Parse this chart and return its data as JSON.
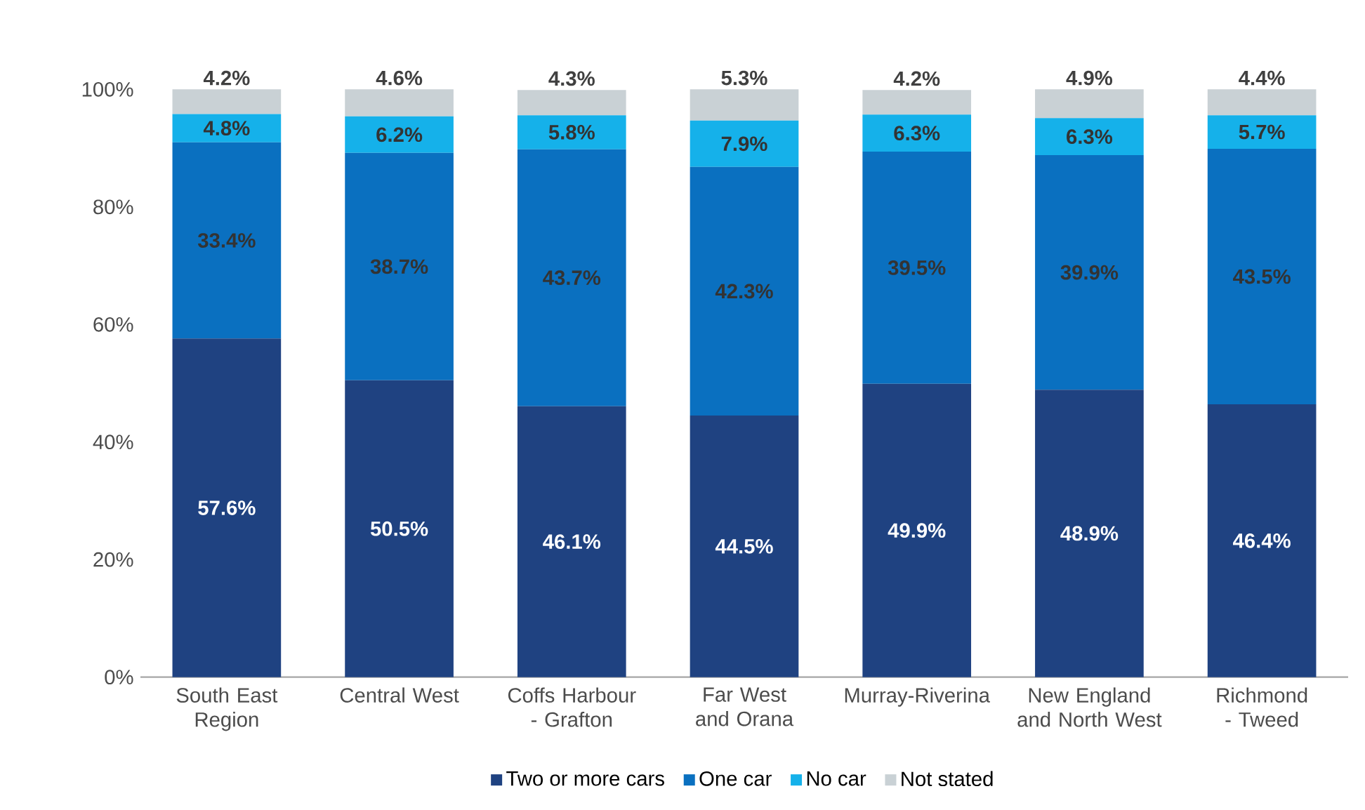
{
  "chart_data": {
    "type": "bar",
    "stacked": true,
    "categories": [
      "South East Region",
      "Central West",
      "Coffs Harbour - Grafton",
      "Far West and Orana",
      "Murray-Riverina",
      "New England and North West",
      "Richmond - Tweed"
    ],
    "series": [
      {
        "name": "Two or more cars",
        "color": "#1f4281",
        "values": [
          57.6,
          50.5,
          46.1,
          44.5,
          49.9,
          48.9,
          46.4
        ],
        "value_labels": [
          "57.6%",
          "50.5%",
          "46.1%",
          "44.5%",
          "49.9%",
          "48.9%",
          "46.4%"
        ]
      },
      {
        "name": "One car",
        "color": "#0a70c0",
        "values": [
          33.4,
          38.7,
          43.7,
          42.3,
          39.5,
          39.9,
          43.5
        ],
        "value_labels": [
          "33.4%",
          "38.7%",
          "43.7%",
          "42.3%",
          "39.5%",
          "39.9%",
          "43.5%"
        ]
      },
      {
        "name": "No car",
        "color": "#15b1ea",
        "values": [
          4.8,
          6.2,
          5.8,
          7.9,
          6.3,
          6.3,
          5.7
        ],
        "value_labels": [
          "4.8%",
          "6.2%",
          "5.8%",
          "7.9%",
          "6.3%",
          "6.3%",
          "5.7%"
        ]
      },
      {
        "name": "Not stated",
        "color": "#c9d1d5",
        "values": [
          4.2,
          4.6,
          4.3,
          5.3,
          4.2,
          4.9,
          4.4
        ],
        "value_labels": [
          "4.2%",
          "4.6%",
          "4.3%",
          "5.3%",
          "4.2%",
          "4.9%",
          "4.4%"
        ]
      }
    ],
    "ylim": [
      0,
      100
    ],
    "yticks": [
      {
        "value": 0,
        "label": "0%"
      },
      {
        "value": 20,
        "label": "20%"
      },
      {
        "value": 40,
        "label": "40%"
      },
      {
        "value": 60,
        "label": "60%"
      },
      {
        "value": 80,
        "label": "80%"
      },
      {
        "value": 100,
        "label": "100%"
      }
    ],
    "legend": "bottom"
  }
}
